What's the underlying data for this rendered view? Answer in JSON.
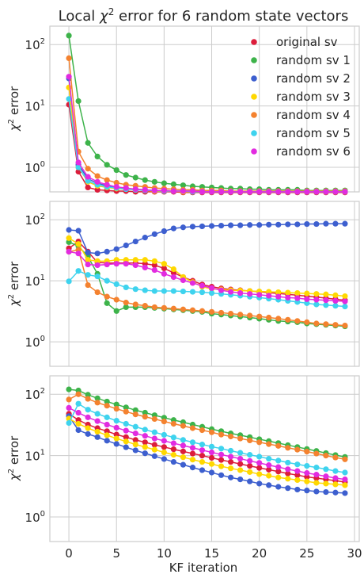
{
  "chart_data": {
    "type": "line",
    "title_parts": [
      "Local ",
      "χ",
      "2",
      " error for 6 random state vectors"
    ],
    "xlabel": "KF iteration",
    "ylabel_parts": [
      "χ",
      "2",
      " error"
    ],
    "xlim": [
      -2,
      30.5
    ],
    "x_ticks": [
      0,
      5,
      10,
      15,
      20,
      25,
      30
    ],
    "y_scale": "log",
    "ylim_log10": [
      -0.4,
      2.3
    ],
    "y_ticks": [
      {
        "base": "10",
        "exp": "0",
        "value": 1
      },
      {
        "base": "10",
        "exp": "1",
        "value": 10
      },
      {
        "base": "10",
        "exp": "2",
        "value": 100
      }
    ],
    "grid": true,
    "legend": {
      "placement": "top-right",
      "panel": 0
    },
    "series_meta": [
      {
        "name": "original sv",
        "color": "#dc1d3b"
      },
      {
        "name": "random sv 1",
        "color": "#3db34a"
      },
      {
        "name": "random sv 2",
        "color": "#3d5fcf"
      },
      {
        "name": "random sv 3",
        "color": "#ffd800"
      },
      {
        "name": "random sv 4",
        "color": "#f4822f"
      },
      {
        "name": "random sv 5",
        "color": "#3ed3ee"
      },
      {
        "name": "random sv 6",
        "color": "#e22be0"
      }
    ],
    "panels": [
      {
        "series": [
          {
            "values": [
              10.5,
              0.85,
              0.47,
              0.43,
              0.42,
              0.41,
              0.41,
              0.4,
              0.4,
              0.4,
              0.4,
              0.4,
              0.39,
              0.39,
              0.39,
              0.39,
              0.39,
              0.39,
              0.39,
              0.39,
              0.39,
              0.39,
              0.39,
              0.39,
              0.39,
              0.39,
              0.39,
              0.39,
              0.39,
              0.39
            ]
          },
          {
            "values": [
              140,
              12,
              2.5,
              1.5,
              1.1,
              0.9,
              0.75,
              0.68,
              0.62,
              0.58,
              0.55,
              0.53,
              0.51,
              0.49,
              0.48,
              0.47,
              0.46,
              0.45,
              0.45,
              0.44,
              0.44,
              0.43,
              0.43,
              0.43,
              0.43,
              0.42,
              0.42,
              0.42,
              0.42,
              0.42
            ]
          },
          {
            "values": [
              28,
              1.1,
              0.65,
              0.55,
              0.5,
              0.47,
              0.45,
              0.44,
              0.43,
              0.42,
              0.42,
              0.41,
              0.41,
              0.41,
              0.41,
              0.4,
              0.4,
              0.4,
              0.4,
              0.4,
              0.4,
              0.4,
              0.4,
              0.4,
              0.4,
              0.4,
              0.4,
              0.4,
              0.4,
              0.4
            ]
          },
          {
            "values": [
              20,
              1.0,
              0.58,
              0.5,
              0.47,
              0.45,
              0.44,
              0.43,
              0.42,
              0.41,
              0.41,
              0.41,
              0.4,
              0.4,
              0.4,
              0.4,
              0.4,
              0.4,
              0.4,
              0.4,
              0.4,
              0.4,
              0.4,
              0.4,
              0.4,
              0.4,
              0.4,
              0.4,
              0.4,
              0.4
            ]
          },
          {
            "values": [
              60,
              1.8,
              0.95,
              0.72,
              0.62,
              0.56,
              0.52,
              0.5,
              0.48,
              0.46,
              0.45,
              0.44,
              0.43,
              0.43,
              0.42,
              0.42,
              0.42,
              0.41,
              0.41,
              0.41,
              0.41,
              0.41,
              0.41,
              0.41,
              0.41,
              0.41,
              0.41,
              0.41,
              0.41,
              0.41
            ]
          },
          {
            "values": [
              13,
              1.0,
              0.6,
              0.52,
              0.48,
              0.46,
              0.44,
              0.43,
              0.42,
              0.42,
              0.41,
              0.41,
              0.41,
              0.4,
              0.4,
              0.4,
              0.4,
              0.4,
              0.4,
              0.4,
              0.4,
              0.4,
              0.4,
              0.4,
              0.4,
              0.4,
              0.4,
              0.4,
              0.4,
              0.4
            ]
          },
          {
            "values": [
              30,
              1.2,
              0.7,
              0.58,
              0.52,
              0.48,
              0.46,
              0.44,
              0.43,
              0.42,
              0.42,
              0.41,
              0.41,
              0.41,
              0.4,
              0.4,
              0.4,
              0.4,
              0.4,
              0.4,
              0.4,
              0.4,
              0.4,
              0.4,
              0.4,
              0.4,
              0.4,
              0.4,
              0.4,
              0.4
            ]
          }
        ]
      },
      {
        "series": [
          {
            "values": [
              34,
              44,
              30,
              20,
              19.5,
              19.5,
              19.5,
              19.5,
              19,
              18,
              16,
              13.5,
              11.5,
              10,
              8.7,
              8,
              7.5,
              7.2,
              7,
              6.8,
              6.6,
              6.4,
              6.2,
              6,
              5.8,
              5.6,
              5.4,
              5.2,
              5,
              4.8
            ]
          },
          {
            "values": [
              43,
              37,
              25,
              13,
              4.3,
              3.2,
              3.7,
              3.7,
              3.7,
              3.6,
              3.5,
              3.4,
              3.3,
              3.2,
              3.1,
              2.9,
              2.8,
              2.7,
              2.6,
              2.5,
              2.4,
              2.3,
              2.2,
              2.15,
              2.1,
              2.0,
              1.95,
              1.9,
              1.85,
              1.8
            ]
          },
          {
            "values": [
              68,
              66,
              29,
              28,
              30,
              33,
              38,
              44,
              51,
              58,
              65,
              72,
              75,
              77,
              78,
              79,
              80,
              81,
              81,
              82,
              82,
              83,
              83,
              84,
              84,
              85,
              85,
              86,
              86,
              86
            ]
          },
          {
            "values": [
              50,
              40,
              22,
              21,
              21,
              22,
              22,
              22,
              22,
              21,
              19,
              15.5,
              11.5,
              9.5,
              8,
              7.4,
              7.2,
              7.0,
              6.9,
              6.8,
              6.7,
              6.6,
              6.5,
              6.4,
              6.3,
              6.2,
              6.1,
              6.0,
              5.8,
              5.6
            ]
          },
          {
            "values": [
              30,
              32,
              8.5,
              6.5,
              5.5,
              4.9,
              4.4,
              4.1,
              3.9,
              3.7,
              3.6,
              3.5,
              3.4,
              3.3,
              3.2,
              3.1,
              3.0,
              2.9,
              2.8,
              2.7,
              2.6,
              2.5,
              2.4,
              2.3,
              2.2,
              2.1,
              2.0,
              1.95,
              1.9,
              1.85
            ]
          },
          {
            "values": [
              9.8,
              14.5,
              12.5,
              11.8,
              10,
              8.8,
              7.8,
              7.3,
              7.0,
              6.8,
              6.8,
              6.8,
              6.7,
              6.6,
              6.5,
              6.3,
              6.1,
              5.9,
              5.7,
              5.5,
              5.3,
              5.1,
              4.9,
              4.7,
              4.5,
              4.3,
              4.1,
              4.0,
              3.9,
              3.8
            ]
          },
          {
            "values": [
              30,
              28,
              18.5,
              18,
              18.5,
              19,
              19,
              18,
              16.5,
              15,
              13,
              11.5,
              10.2,
              9.2,
              8.3,
              7.6,
              7.0,
              6.6,
              6.3,
              6.1,
              5.9,
              5.7,
              5.5,
              5.3,
              5.2,
              5.0,
              4.9,
              4.8,
              4.7,
              4.6
            ]
          }
        ]
      },
      {
        "series": [
          {
            "values": [
              48,
              38,
              32,
              28,
              25,
              22,
              20,
              18,
              16.5,
              15,
              13.8,
              12.7,
              11.7,
              10.8,
              10,
              9.2,
              8.5,
              7.9,
              7.3,
              6.8,
              6.3,
              5.9,
              5.5,
              5.1,
              4.8,
              4.5,
              4.3,
              4.1,
              3.9,
              3.7
            ]
          },
          {
            "values": [
              120,
              115,
              98,
              86,
              76,
              68,
              61,
              55,
              50,
              45.5,
              41.5,
              38,
              35,
              32,
              29.5,
              27,
              25,
              23,
              21.5,
              20,
              18.5,
              17.2,
              16,
              14.8,
              13.8,
              12.8,
              11.9,
              11,
              10.2,
              9.5
            ]
          },
          {
            "values": [
              44,
              26,
              22.5,
              20,
              17.5,
              15.5,
              13.7,
              12.2,
              10.9,
              9.8,
              8.8,
              7.9,
              7.1,
              6.4,
              5.8,
              5.3,
              4.8,
              4.4,
              4.1,
              3.8,
              3.5,
              3.3,
              3.1,
              2.95,
              2.8,
              2.7,
              2.6,
              2.55,
              2.5,
              2.45
            ]
          },
          {
            "values": [
              40,
              33,
              28,
              24.5,
              21.5,
              19,
              17,
              15.2,
              13.8,
              12.5,
              11.3,
              10.3,
              9.4,
              8.6,
              7.9,
              7.3,
              6.7,
              6.2,
              5.8,
              5.4,
              5.0,
              4.7,
              4.4,
              4.2,
              4.0,
              3.8,
              3.6,
              3.5,
              3.4,
              3.3
            ]
          },
          {
            "values": [
              82,
              100,
              84,
              73,
              65,
              58,
              52,
              47,
              43,
              39.5,
              36,
              33,
              30.5,
              28,
              26,
              24,
              22,
              20.5,
              19,
              17.7,
              16.5,
              15.4,
              14.4,
              13.4,
              12.5,
              11.6,
              10.8,
              10,
              9.3,
              8.7
            ]
          },
          {
            "values": [
              34,
              70,
              56,
              48,
              42,
              37,
              33,
              29.5,
              26.5,
              24,
              21.8,
              19.8,
              18,
              16.5,
              15.2,
              14,
              13,
              12,
              11.1,
              10.3,
              9.6,
              8.9,
              8.3,
              7.7,
              7.2,
              6.8,
              6.4,
              6.0,
              5.6,
              5.3
            ]
          },
          {
            "values": [
              60,
              50,
              42,
              36.5,
              32,
              28.5,
              25.5,
              23,
              21,
              19,
              17.4,
              15.9,
              14.6,
              13.4,
              12.3,
              11.3,
              10.4,
              9.6,
              8.9,
              8.2,
              7.6,
              7.0,
              6.5,
              6.0,
              5.6,
              5.2,
              4.9,
              4.6,
              4.3,
              4.1
            ]
          }
        ]
      }
    ]
  }
}
